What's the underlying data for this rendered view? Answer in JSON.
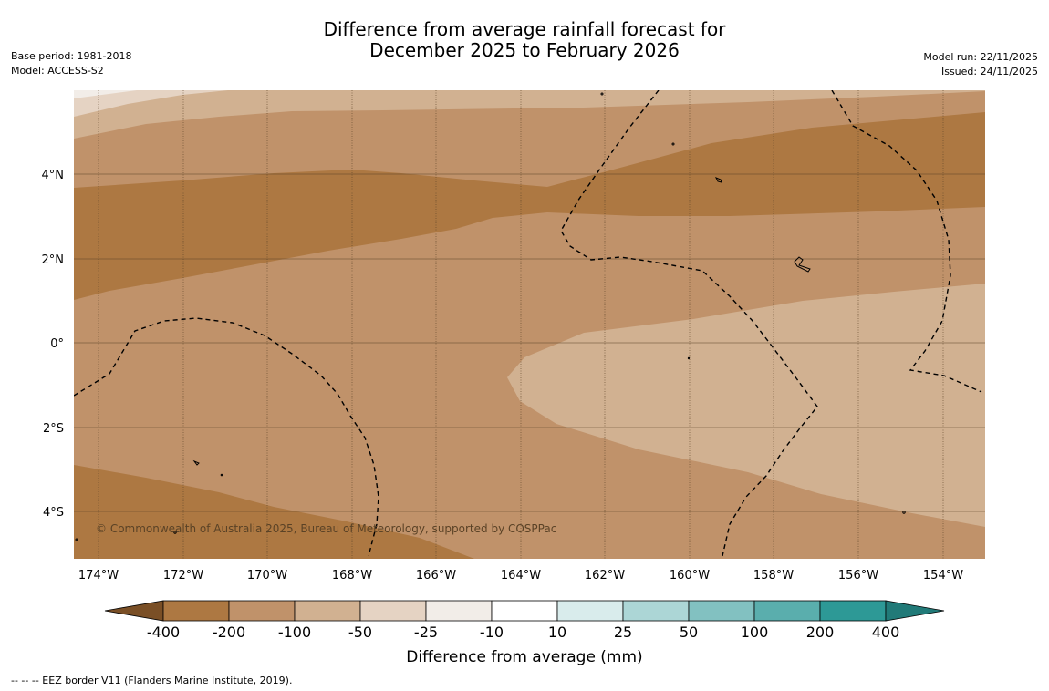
{
  "title_line1": "Difference from average rainfall forecast for",
  "title_line2": "December 2025 to February 2026",
  "left_meta": {
    "base_period": "Base period: 1981-2018",
    "model": "Model: ACCESS-S2"
  },
  "right_meta": {
    "model_run": "Model run: 22/11/2025",
    "issued": "Issued: 24/11/2025"
  },
  "map": {
    "copyright": "© Commonwealth of Australia 2025, Bureau of Meteorology, supported by COSPPac",
    "lat_labels": [
      "4°N",
      "2°N",
      "0°",
      "2°S",
      "4°S"
    ],
    "lon_labels": [
      "174°W",
      "172°W",
      "170°W",
      "168°W",
      "166°W",
      "164°W",
      "162°W",
      "160°W",
      "158°W",
      "156°W",
      "154°W"
    ]
  },
  "colorbar": {
    "title": "Difference from average (mm)",
    "tick_labels": [
      "-400",
      "-200",
      "-100",
      "-50",
      "-25",
      "-10",
      "10",
      "25",
      "50",
      "100",
      "200",
      "400"
    ],
    "colors": [
      "#7a4f26",
      "#ad7842",
      "#c0926a",
      "#d1b191",
      "#e5d3c3",
      "#f2ede8",
      "#ffffff",
      "#d9ecec",
      "#acd6d6",
      "#82c1c1",
      "#5aaead",
      "#2d9996",
      "#217a78"
    ]
  },
  "footer": "--  --  -- EEZ border V11 (Flanders Marine Institute, 2019)."
}
